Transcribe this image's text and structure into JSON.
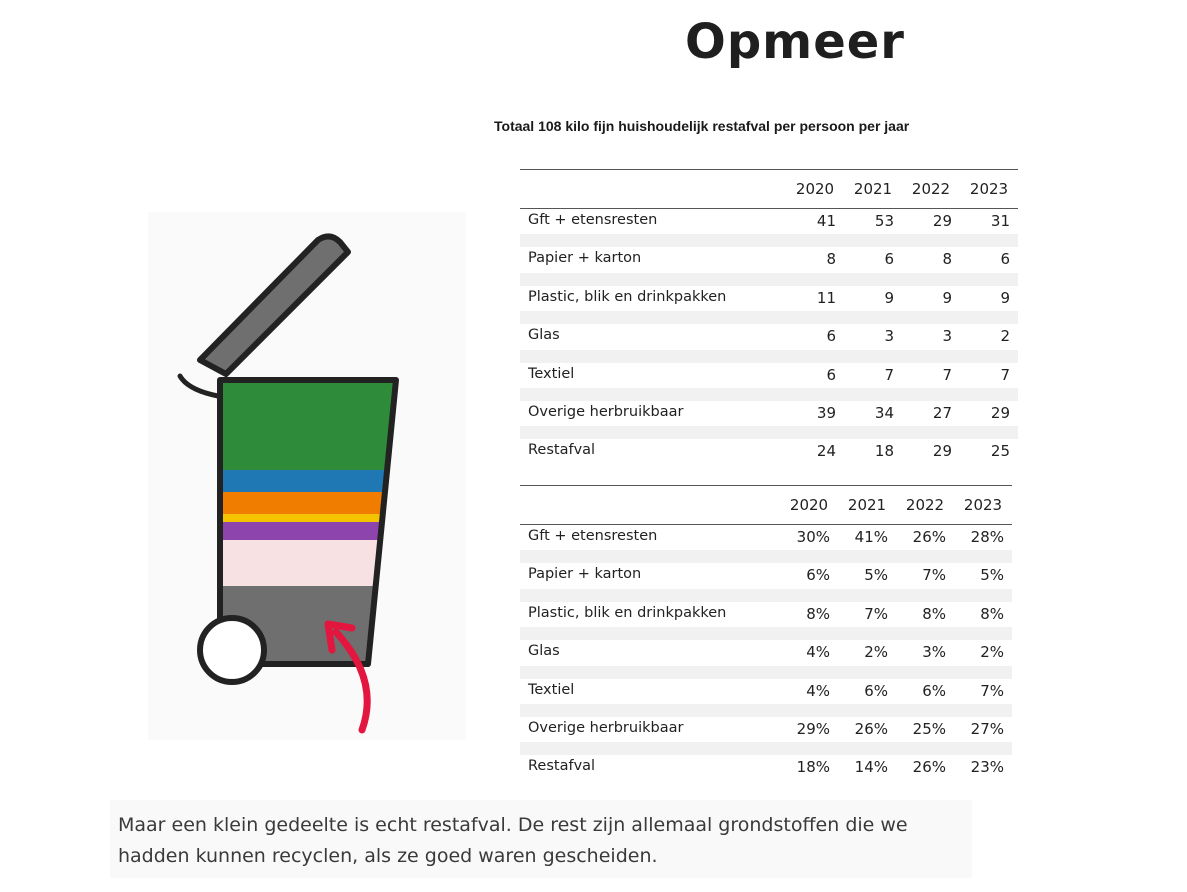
{
  "title": "Opmeer",
  "subtitle": "Totaal 108 kilo fijn huishoudelijk restafval per persoon per jaar",
  "years": [
    "2020",
    "2021",
    "2022",
    "2023"
  ],
  "table_kg": {
    "rows": [
      {
        "label": "Gft + etensresten",
        "values": [
          "41",
          "53",
          "29",
          "31"
        ]
      },
      {
        "label": "Papier + karton",
        "values": [
          "8",
          "6",
          "8",
          "6"
        ]
      },
      {
        "label": "Plastic, blik en drinkpakken",
        "values": [
          "11",
          "9",
          "9",
          "9"
        ]
      },
      {
        "label": "Glas",
        "values": [
          "6",
          "3",
          "3",
          "2"
        ]
      },
      {
        "label": "Textiel",
        "values": [
          "6",
          "7",
          "7",
          "7"
        ]
      },
      {
        "label": "Overige herbruikbaar",
        "values": [
          "39",
          "34",
          "27",
          "29"
        ]
      },
      {
        "label": "Restafval",
        "values": [
          "24",
          "18",
          "29",
          "25"
        ]
      }
    ]
  },
  "table_pct": {
    "rows": [
      {
        "label": "Gft + etensresten",
        "values": [
          "30%",
          "41%",
          "26%",
          "28%"
        ]
      },
      {
        "label": "Papier + karton",
        "values": [
          "6%",
          "5%",
          "7%",
          "5%"
        ]
      },
      {
        "label": "Plastic, blik en drinkpakken",
        "values": [
          "8%",
          "7%",
          "8%",
          "8%"
        ]
      },
      {
        "label": "Glas",
        "values": [
          "4%",
          "2%",
          "3%",
          "2%"
        ]
      },
      {
        "label": "Textiel",
        "values": [
          "4%",
          "6%",
          "6%",
          "7%"
        ]
      },
      {
        "label": "Overige herbruikbaar",
        "values": [
          "29%",
          "26%",
          "25%",
          "27%"
        ]
      },
      {
        "label": "Restafval",
        "values": [
          "18%",
          "14%",
          "26%",
          "23%"
        ]
      }
    ]
  },
  "bin_colors": {
    "gft": "#2e8b3a",
    "papier": "#1f77b4",
    "plastic": "#f07d00",
    "glas": "#f5c400",
    "textiel": "#8e44ad",
    "overige": "#f7e1e3",
    "restafval": "#6f6f6f",
    "arrow": "#e3163f"
  },
  "caption": "Maar een klein gedeelte is echt restafval. De rest zijn allemaal grondstoffen die we hadden kunnen recyclen, als ze goed waren gescheiden."
}
